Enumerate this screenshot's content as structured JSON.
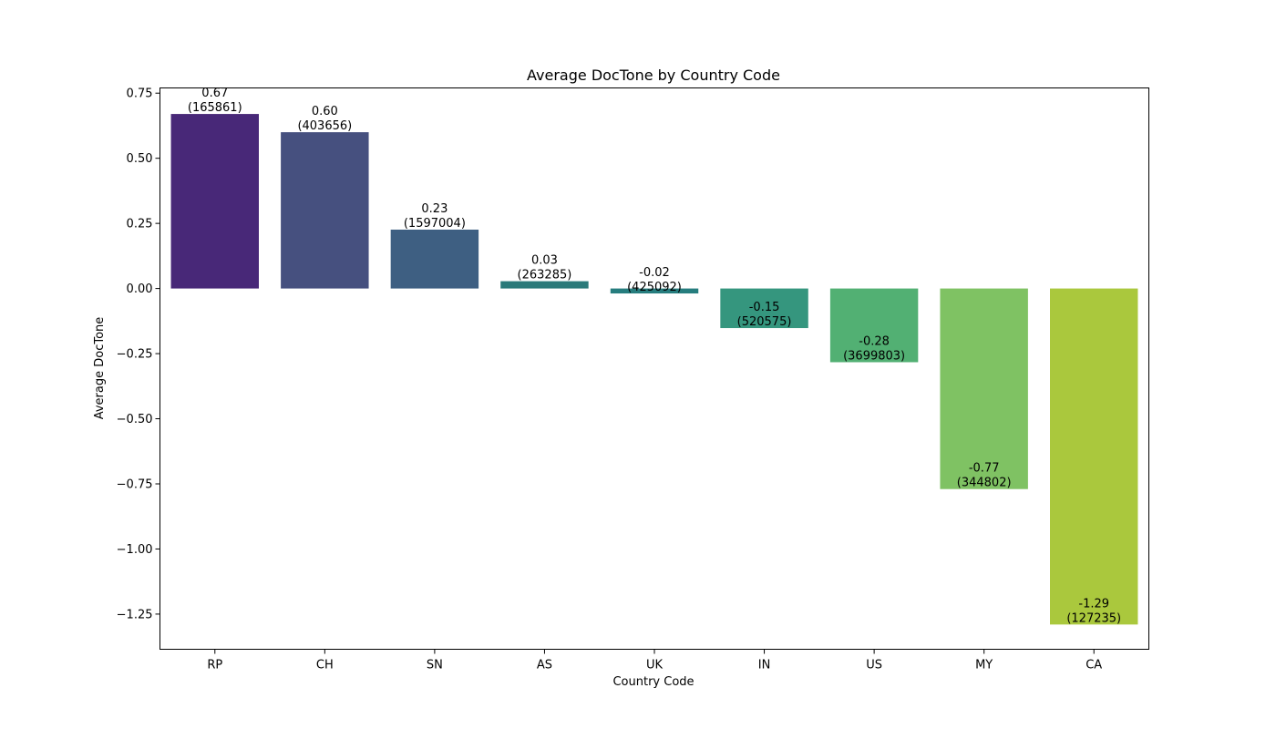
{
  "chart_data": {
    "type": "bar",
    "title": "Average DocTone by Country Code",
    "xlabel": "Country Code",
    "ylabel": "Average DocTone",
    "categories": [
      "RP",
      "CH",
      "SN",
      "AS",
      "UK",
      "IN",
      "US",
      "MY",
      "CA"
    ],
    "values": [
      0.67,
      0.6,
      0.226,
      0.028,
      -0.019,
      -0.152,
      -0.283,
      -0.77,
      -1.29
    ],
    "value_labels": [
      "0.67",
      "0.60",
      "0.23",
      "0.03",
      "-0.02",
      "-0.15",
      "-0.28",
      "-0.77",
      "-1.29"
    ],
    "counts": [
      "(165861)",
      "(403656)",
      "(1597004)",
      "(263285)",
      "(425092)",
      "(520575)",
      "(3699803)",
      "(344802)",
      "(127235)"
    ],
    "colors": [
      "#482878",
      "#46507f",
      "#3e5f82",
      "#2a7a7a",
      "#267d7e",
      "#35967e",
      "#52b073",
      "#7fc263",
      "#aac83d"
    ],
    "ylim": [
      -1.385,
      0.77
    ],
    "yticks": [
      0.75,
      0.5,
      0.25,
      0.0,
      -0.25,
      -0.5,
      -0.75,
      -1.0,
      -1.25
    ],
    "ytick_labels": [
      "0.75",
      "0.50",
      "0.25",
      "0.00",
      "−0.25",
      "−0.50",
      "−0.75",
      "−1.00",
      "−1.25"
    ],
    "grid": false,
    "legend": "none"
  }
}
